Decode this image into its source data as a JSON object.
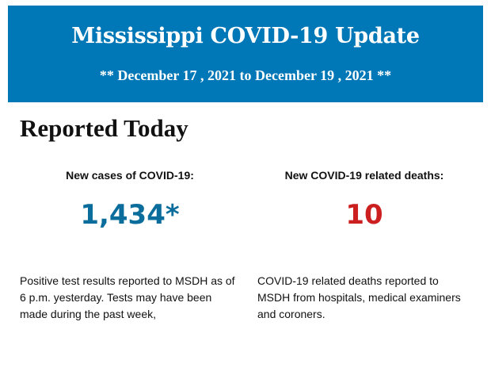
{
  "banner": {
    "title": "Mississippi COVID-19 Update",
    "date_range": "** December 17 , 2021 to December 19 , 2021 **",
    "background_color": "#0077b6"
  },
  "section": {
    "heading": "Reported Today"
  },
  "stats": {
    "cases": {
      "label": "New cases of COVID-19:",
      "value": "1,434*",
      "color": "#0b6d9c",
      "note": "Positive test results reported to MSDH as of 6 p.m. yesterday. Tests may have been made during the past week,"
    },
    "deaths": {
      "label": "New COVID-19 related deaths:",
      "value": "10",
      "color": "#cc1f1f",
      "note": "COVID-19 related deaths reported to MSDH from hospitals, medical examiners and coroners."
    }
  }
}
